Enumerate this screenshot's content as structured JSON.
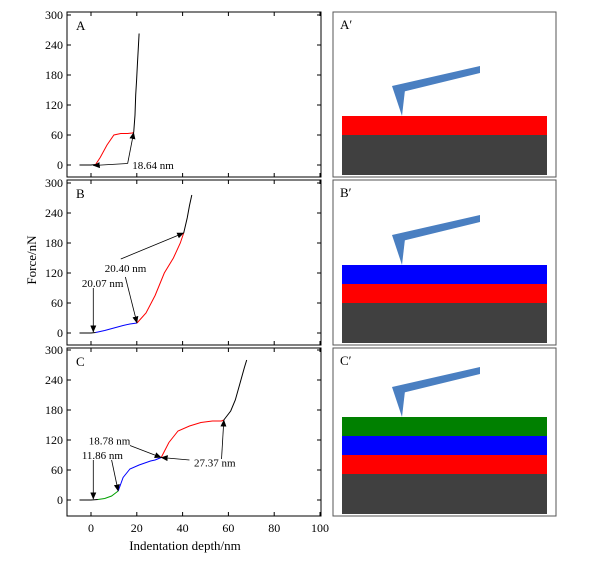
{
  "axes": {
    "xlabel": "Indentation depth/nm",
    "ylabel": "Force/nN"
  },
  "colors": {
    "black": "#000000",
    "red": "#ff0000",
    "blue": "#0000ff",
    "green": "#00a000",
    "substrate": "#404040",
    "layer_red": "#ff0000",
    "layer_blue": "#0000ff",
    "layer_green": "#008000",
    "tip": "#4a7fc1"
  },
  "schematics": [
    {
      "label": "A′",
      "layers": [
        "layer_red"
      ]
    },
    {
      "label": "B′",
      "layers": [
        "layer_red",
        "layer_blue"
      ]
    },
    {
      "label": "C′",
      "layers": [
        "layer_red",
        "layer_blue",
        "layer_green"
      ]
    }
  ],
  "chart_data": [
    {
      "type": "line",
      "panel": "A",
      "xlim": [
        -5,
        100
      ],
      "ylim": [
        -10,
        300
      ],
      "yticks": [
        "0",
        "60",
        "120",
        "180",
        "240",
        "300"
      ],
      "xticks": [],
      "segments": [
        {
          "color": "black",
          "points": [
            [
              -5,
              0
            ],
            [
              0,
              0
            ],
            [
              2,
              1
            ]
          ]
        },
        {
          "color": "red",
          "points": [
            [
              2,
              1
            ],
            [
              4,
              15
            ],
            [
              7,
              40
            ],
            [
              10,
              60
            ],
            [
              13,
              63
            ],
            [
              16,
              63
            ],
            [
              18,
              64
            ],
            [
              18.64,
              65
            ]
          ]
        },
        {
          "color": "black",
          "points": [
            [
              18.64,
              65
            ],
            [
              19.2,
              100
            ],
            [
              19.5,
              140
            ],
            [
              19.9,
              170
            ],
            [
              20.3,
              205
            ],
            [
              20.6,
              230
            ],
            [
              21,
              263
            ]
          ]
        }
      ],
      "annotations": [
        {
          "text": "18.64 nm",
          "arrow_to": [
            18.64,
            65
          ],
          "label_at": [
            18,
            0
          ],
          "tail_at": [
            16,
            3
          ]
        },
        {
          "text": "",
          "arrow_to": [
            1,
            -1
          ],
          "label_at": [
            18,
            0
          ],
          "tail_at": [
            16,
            3
          ]
        }
      ]
    },
    {
      "type": "line",
      "panel": "B",
      "xlim": [
        -5,
        100
      ],
      "ylim": [
        -10,
        300
      ],
      "yticks": [
        "0",
        "60",
        "120",
        "180",
        "240",
        "300"
      ],
      "xticks": [],
      "segments": [
        {
          "color": "black",
          "points": [
            [
              -5,
              0
            ],
            [
              0,
              0
            ],
            [
              2,
              1
            ]
          ]
        },
        {
          "color": "blue",
          "points": [
            [
              2,
              1
            ],
            [
              6,
              5
            ],
            [
              10,
              10
            ],
            [
              14,
              15
            ],
            [
              17,
              18
            ],
            [
              20.07,
              20
            ]
          ]
        },
        {
          "color": "red",
          "points": [
            [
              20.07,
              20
            ],
            [
              24,
              40
            ],
            [
              28,
              75
            ],
            [
              32,
              120
            ],
            [
              36,
              150
            ],
            [
              39,
              180
            ],
            [
              40.47,
              200
            ]
          ]
        },
        {
          "color": "black",
          "points": [
            [
              40.47,
              200
            ],
            [
              42,
              230
            ],
            [
              43,
              255
            ],
            [
              44,
              276
            ]
          ]
        }
      ],
      "annotations": [
        {
          "text": "20.07 nm",
          "arrow_to": [
            1,
            2
          ],
          "label_at": [
            -4,
            100
          ],
          "tail_at": [
            1,
            90
          ]
        },
        {
          "text": "20.40 nm",
          "arrow_to": [
            40.47,
            200
          ],
          "label_at": [
            6,
            130
          ],
          "tail_at": [
            13,
            148
          ]
        },
        {
          "text": "",
          "arrow_to": [
            20.07,
            20
          ],
          "label_at": [
            6,
            130
          ],
          "tail_at": [
            15,
            112
          ]
        }
      ]
    },
    {
      "type": "line",
      "panel": "C",
      "xlim": [
        -5,
        100
      ],
      "ylim": [
        -10,
        300
      ],
      "yticks": [
        "0",
        "60",
        "120",
        "180",
        "240",
        "300"
      ],
      "xticks": [
        "0",
        "20",
        "40",
        "60",
        "80",
        "100"
      ],
      "segments": [
        {
          "color": "black",
          "points": [
            [
              -5,
              0
            ],
            [
              0,
              0
            ],
            [
              3,
              1
            ]
          ]
        },
        {
          "color": "green",
          "points": [
            [
              3,
              1
            ],
            [
              6,
              3
            ],
            [
              9,
              8
            ],
            [
              11,
              15
            ],
            [
              11.86,
              18
            ]
          ]
        },
        {
          "color": "blue",
          "points": [
            [
              11.86,
              18
            ],
            [
              14,
              45
            ],
            [
              17,
              62
            ],
            [
              21,
              70
            ],
            [
              26,
              78
            ],
            [
              28,
              80
            ],
            [
              30.64,
              85
            ]
          ]
        },
        {
          "color": "red",
          "points": [
            [
              30.64,
              85
            ],
            [
              34,
              115
            ],
            [
              38,
              138
            ],
            [
              43,
              148
            ],
            [
              48,
              155
            ],
            [
              53,
              158
            ],
            [
              57,
              158
            ],
            [
              58.01,
              160
            ]
          ]
        },
        {
          "color": "black",
          "points": [
            [
              58.01,
              160
            ],
            [
              61,
              178
            ],
            [
              63,
              200
            ],
            [
              65,
              232
            ],
            [
              67,
              265
            ],
            [
              68,
              280
            ]
          ]
        }
      ],
      "annotations": [
        {
          "text": "11.86 nm",
          "arrow_to": [
            1,
            2
          ],
          "label_at": [
            -4,
            90
          ],
          "tail_at": [
            1,
            80
          ]
        },
        {
          "text": "",
          "arrow_to": [
            11.86,
            18
          ],
          "label_at": [
            -4,
            90
          ],
          "tail_at": [
            9,
            80
          ]
        },
        {
          "text": "18.78 nm",
          "arrow_to": [
            30.64,
            85
          ],
          "label_at": [
            -1,
            119
          ],
          "tail_at": [
            17,
            109
          ]
        },
        {
          "text": "27.37 nm",
          "arrow_to": [
            30.64,
            85
          ],
          "label_at": [
            45,
            75
          ],
          "tail_at": [
            43,
            80
          ]
        },
        {
          "text": "",
          "arrow_to": [
            58.01,
            160
          ],
          "label_at": [
            45,
            75
          ],
          "tail_at": [
            57,
            82
          ]
        }
      ]
    }
  ]
}
